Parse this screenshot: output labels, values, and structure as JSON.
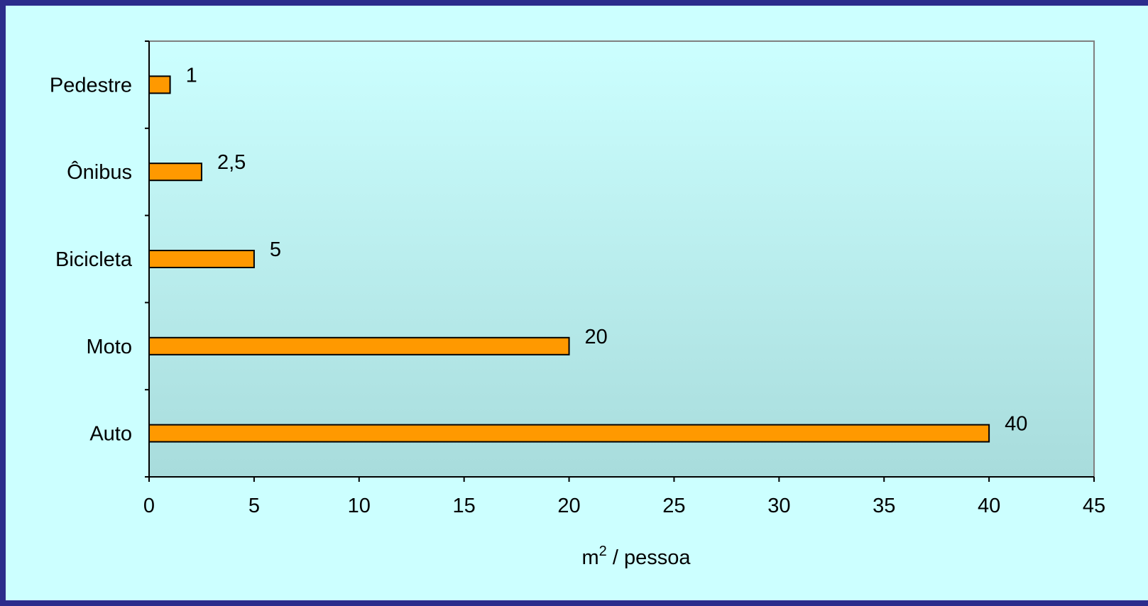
{
  "chart_data": {
    "type": "bar",
    "orientation": "horizontal",
    "categories": [
      "Auto",
      "Moto",
      "Bicicleta",
      "Ônibus",
      "Pedestre"
    ],
    "values": [
      40,
      20,
      5,
      2.5,
      1
    ],
    "value_labels": [
      "40",
      "20",
      "5",
      "2,5",
      "1"
    ],
    "xlabel": "m² / pessoa",
    "ylabel": "",
    "xlim": [
      0,
      45
    ],
    "xticks": [
      0,
      5,
      10,
      15,
      20,
      25,
      30,
      35,
      40,
      45
    ],
    "grid": false,
    "legend": "none",
    "colors": {
      "bar_fill": "#ff9900",
      "bar_stroke": "#000000",
      "plot_gradient_top": "#ccffff",
      "plot_gradient_bottom": "#a8dcdc",
      "page_background": "#ccffff",
      "border": "#2c2c8c"
    }
  }
}
